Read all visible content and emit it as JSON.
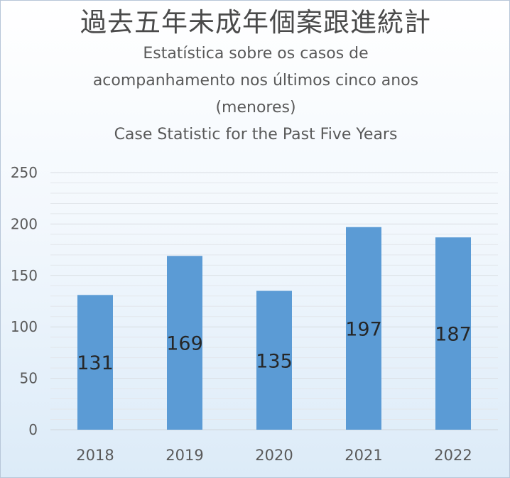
{
  "title": {
    "main": "過去五年未成年個案跟進統計",
    "subtitle_pt_1": "Estatística sobre os casos de",
    "subtitle_pt_2": "acompanhamento nos últimos cinco anos",
    "subtitle_pt_3": "(menores)",
    "subtitle_en": "Case Statistic for the Past Five Years"
  },
  "chart_data": {
    "type": "bar",
    "categories": [
      "2018",
      "2019",
      "2020",
      "2021",
      "2022"
    ],
    "values": [
      131,
      169,
      135,
      197,
      187
    ],
    "data_labels": [
      "131",
      "169",
      "135",
      "197",
      "187"
    ],
    "ylim": [
      0,
      250
    ],
    "y_ticks": [
      "0",
      "50",
      "100",
      "150",
      "200",
      "250"
    ],
    "grid": true,
    "legend": "none",
    "bar_color": "#5b9bd5",
    "text_color": "#595959",
    "grid_color": "#e3e7ec"
  }
}
